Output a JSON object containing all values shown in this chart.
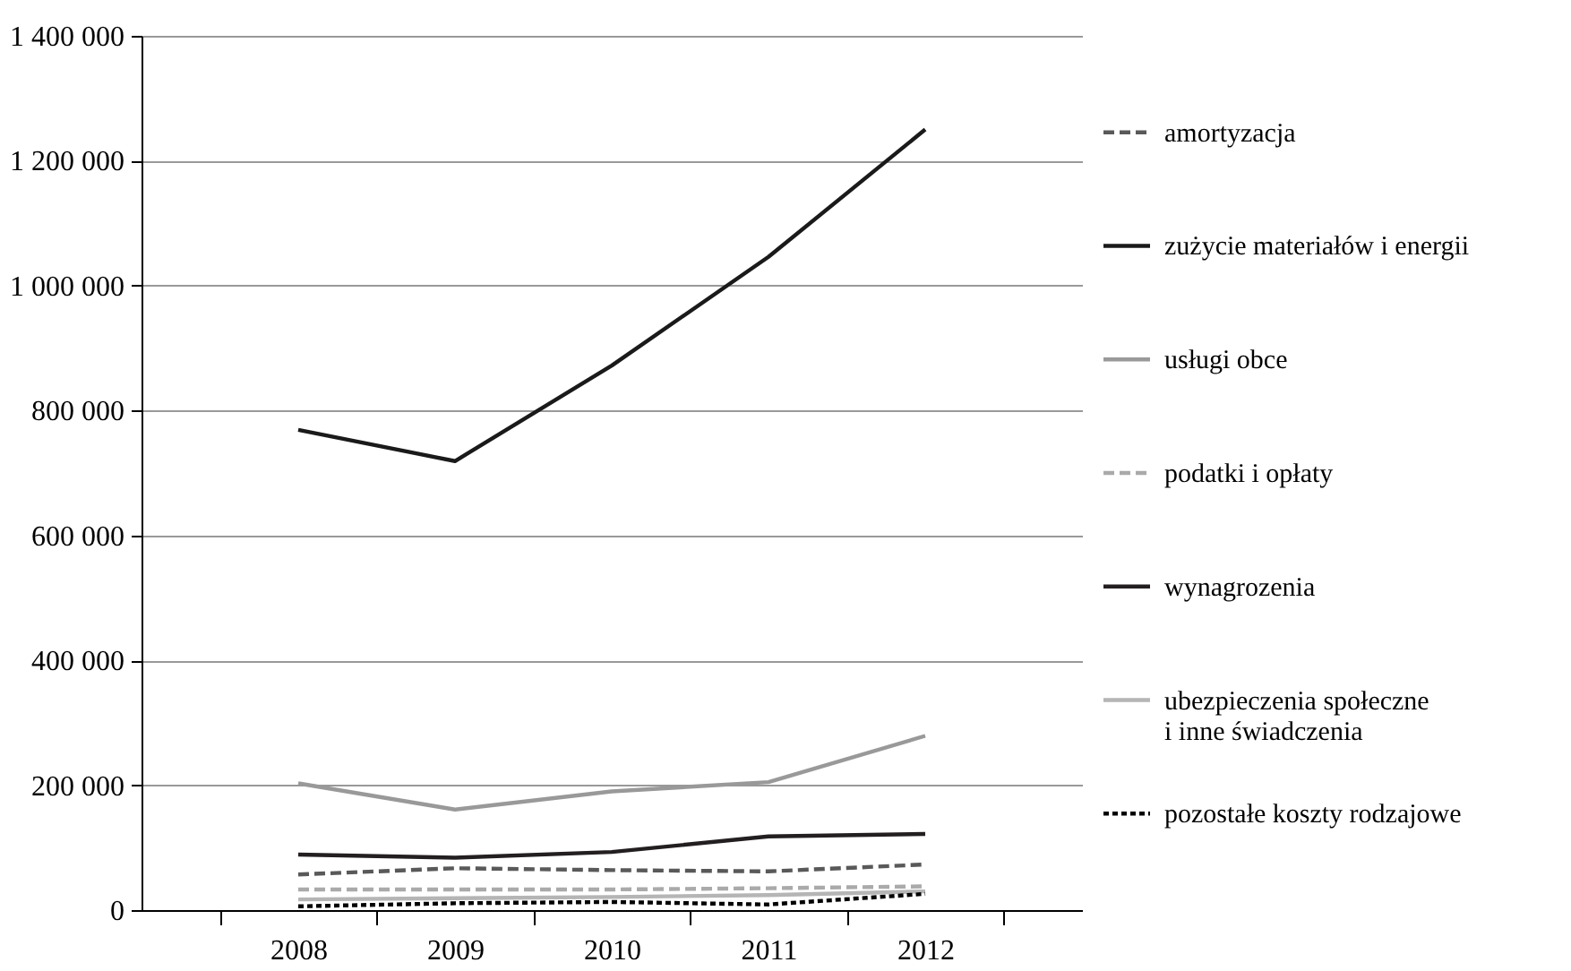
{
  "chart_data": {
    "type": "line",
    "categories": [
      "2008",
      "2009",
      "2010",
      "2011",
      "2012"
    ],
    "ylim": [
      0,
      1400000
    ],
    "yticks": [
      {
        "value": 0,
        "label": "0"
      },
      {
        "value": 200000,
        "label": "200 000"
      },
      {
        "value": 400000,
        "label": "400 000"
      },
      {
        "value": 600000,
        "label": "600 000"
      },
      {
        "value": 800000,
        "label": "800 000"
      },
      {
        "value": 1000000,
        "label": "1 000 000"
      },
      {
        "value": 1200000,
        "label": "1 200 000"
      },
      {
        "value": 1400000,
        "label": "1 400 000"
      }
    ],
    "grid": "y",
    "legend": "right",
    "marker": "none",
    "series": [
      {
        "name": "amortyzacja",
        "color": "#595959",
        "line_style": "dashed",
        "values": [
          57000,
          67000,
          64000,
          62000,
          73000
        ]
      },
      {
        "name": "zużycie materiałów i energii",
        "color": "#1a1a1a",
        "line_style": "solid",
        "values": [
          769000,
          719000,
          872000,
          1046000,
          1250000
        ]
      },
      {
        "name": "usługi obce",
        "color": "#999999",
        "line_style": "solid",
        "values": [
          203000,
          161000,
          190000,
          205000,
          279000
        ]
      },
      {
        "name": "podatki i opłaty",
        "color": "#aaaaaa",
        "line_style": "dashed",
        "values": [
          33000,
          33000,
          33000,
          35000,
          38000
        ]
      },
      {
        "name": "wynagrozenia",
        "color": "#231f20",
        "line_style": "solid",
        "values": [
          89000,
          84000,
          93000,
          118000,
          122000
        ]
      },
      {
        "name": "ubezpieczenia społeczne\ni inne świadczenia",
        "color": "#b5b5b5",
        "line_style": "solid",
        "values": [
          17000,
          19000,
          21000,
          24000,
          30000
        ]
      },
      {
        "name": "pozostałe koszty rodzajowe",
        "color": "#000000",
        "line_style": "dotted",
        "values": [
          6000,
          11000,
          13000,
          9000,
          26000
        ]
      }
    ]
  }
}
